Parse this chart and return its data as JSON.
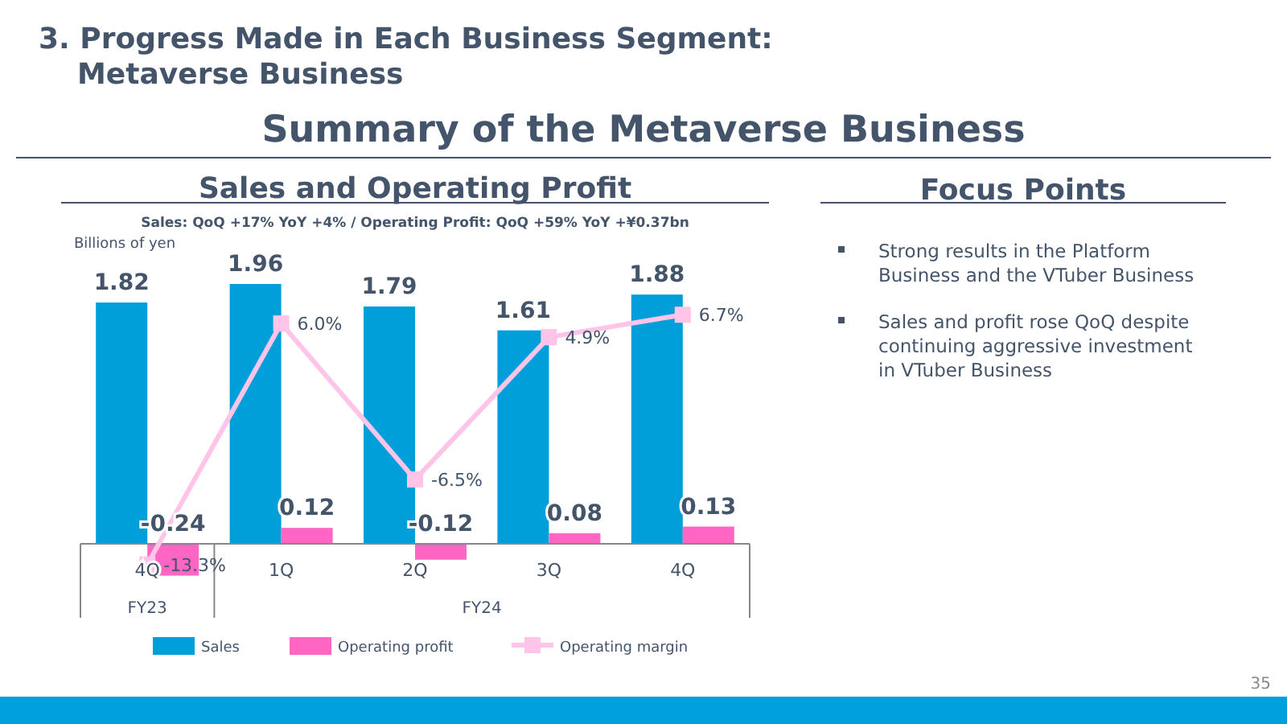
{
  "chart_data": [
    {
      "type": "bar",
      "title": "Sales and Operating Profit",
      "subtitle": "Sales: QoQ +17% YoY +4% / Operating Profit: QoQ +59% YoY +¥0.37bn",
      "ylabel": "Billions of yen",
      "categories": [
        "4Q",
        "1Q",
        "2Q",
        "3Q",
        "4Q"
      ],
      "series": [
        {
          "name": "Sales",
          "color": "#009fd9",
          "values": [
            1.82,
            1.96,
            1.79,
            1.61,
            1.88
          ]
        },
        {
          "name": "Operating profit",
          "color": "#ff66c4",
          "values": [
            -0.24,
            0.12,
            -0.12,
            0.08,
            0.13
          ]
        },
        {
          "name": "Operating margin",
          "type": "line",
          "axis": "y2",
          "color": "#ffc4e8",
          "values": [
            -13.3,
            6.0,
            -6.5,
            4.9,
            6.7
          ],
          "value_labels": [
            "-13.3%",
            "6.0%",
            "-6.5%",
            "4.9%",
            "6.7%"
          ]
        }
      ],
      "data_labels": true,
      "marker": "square",
      "legend": "bottom",
      "annotations": [
        "3. Progress Made in Each Business Segment: Metaverse Business",
        "Summary of the Metaverse Business",
        "FY23",
        "FY24",
        "35"
      ]
    },
    {
      "type": "other",
      "title": "Focus Points",
      "annotations": [
        "Strong results in the Platform Business and the VTuber Business",
        "Sales and profit rose QoQ despite continuing aggressive investment in VTuber Business"
      ]
    }
  ]
}
